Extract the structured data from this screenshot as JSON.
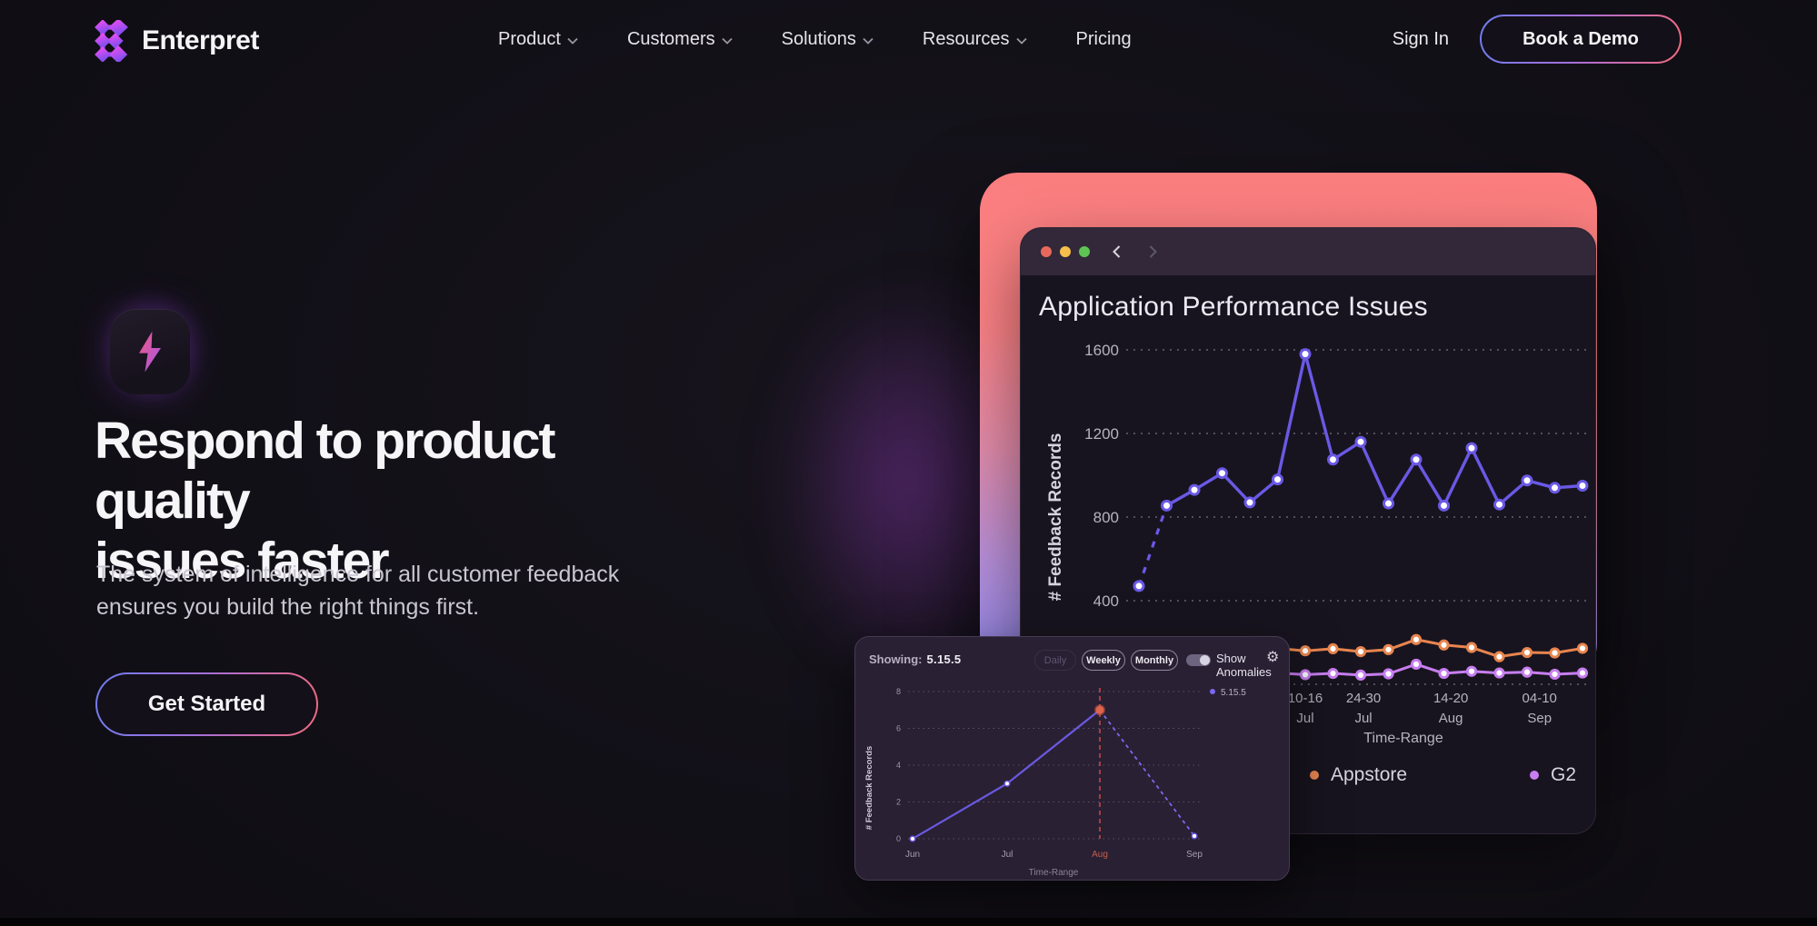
{
  "header": {
    "logo_text": "Enterpret",
    "nav": [
      {
        "label": "Product",
        "has_dropdown": true
      },
      {
        "label": "Customers",
        "has_dropdown": true
      },
      {
        "label": "Solutions",
        "has_dropdown": true
      },
      {
        "label": "Resources",
        "has_dropdown": true
      },
      {
        "label": "Pricing",
        "has_dropdown": false
      }
    ],
    "sign_in": "Sign In",
    "book_demo": "Book a Demo"
  },
  "hero": {
    "icon": "lightning-bolt",
    "heading_line1": "Respond to product quality",
    "heading_line2": "issues faster",
    "subtitle": "The system of intelligence for all customer feedback ensures you build the right things first.",
    "cta": "Get Started"
  },
  "browser_window": {
    "title": "Application Performance Issues",
    "traffic_lights": [
      "red",
      "yellow",
      "green"
    ],
    "back_icon": "chevron-left",
    "forward_icon": "chevron-right"
  },
  "mini_card": {
    "showing_label": "Showing:",
    "showing_value": "5.15.5",
    "controls": [
      {
        "label": "Daily",
        "active": false
      },
      {
        "label": "Weekly",
        "active": true
      },
      {
        "label": "Monthly",
        "active": true
      }
    ],
    "toggle_label": "Show Anomalies",
    "toggle_on": true,
    "gear_icon": "settings-gear"
  },
  "colors": {
    "page_bg": "#121017",
    "frame_gradient_top": "#fb7d7d",
    "frame_gradient_bottom": "#8b88ef",
    "cta_border_left": "#6f7cf0",
    "cta_border_right": "#f26a7e",
    "main_line": "#6a59e6",
    "appstore_line": "#e8854f",
    "g2_line": "#c77ef0",
    "anomaly_red": "#c4483e",
    "mini_line": "#6b59e0"
  },
  "chart_data": [
    {
      "type": "line",
      "title": "Application Performance Issues",
      "xlabel": "Time-Range",
      "ylabel": "# Feedback Records",
      "ylim": [
        0,
        1700
      ],
      "yticks": [
        400,
        800,
        1200,
        1600
      ],
      "grid": "dashed-horizontal",
      "x_tick_labels": [
        {
          "line1": "10-16",
          "line2": "Jul",
          "point": 6.0
        },
        {
          "line1": "24-30",
          "line2": "Jul",
          "point": 8.1
        },
        {
          "line1": "14-20",
          "line2": "Aug",
          "point": 11.25
        },
        {
          "line1": "04-10",
          "line2": "Sep",
          "point": 14.45
        }
      ],
      "series": [
        {
          "name": "",
          "color": "#6a59e6",
          "in_legend": false,
          "first_segment_dashed": true,
          "values": [
            470,
            855,
            930,
            1010,
            870,
            980,
            1580,
            1075,
            1160,
            865,
            1075,
            855,
            1130,
            860,
            975,
            940,
            950
          ]
        },
        {
          "name": "Appstore",
          "color": "#e8854f",
          "in_legend": true,
          "first_segment_dashed": false,
          "values": [
            168,
            172,
            163,
            170,
            166,
            172,
            160,
            170,
            156,
            166,
            214,
            188,
            176,
            132,
            152,
            150,
            172
          ]
        },
        {
          "name": "G2",
          "color": "#c77ef0",
          "in_legend": true,
          "first_segment_dashed": false,
          "values": [
            48,
            52,
            46,
            50,
            48,
            54,
            46,
            52,
            44,
            50,
            96,
            52,
            62,
            54,
            58,
            48,
            54
          ]
        }
      ],
      "legend_position": "bottom"
    },
    {
      "type": "line",
      "xlabel": "Time-Range",
      "ylabel": "# Feedback Records",
      "ylim": [
        0,
        8
      ],
      "yticks": [
        0,
        2,
        4,
        6,
        8
      ],
      "grid": "dotted-horizontal",
      "categories": [
        "Jun",
        "Jul",
        "Aug",
        "Sep"
      ],
      "values": [
        0,
        3,
        7,
        0.15
      ],
      "anomaly_index": 2,
      "dashed_after_anomaly": true,
      "highlighted_category": "Aug",
      "legend": [
        {
          "label": "5.15.5",
          "color": "#7b68ee"
        }
      ]
    }
  ]
}
